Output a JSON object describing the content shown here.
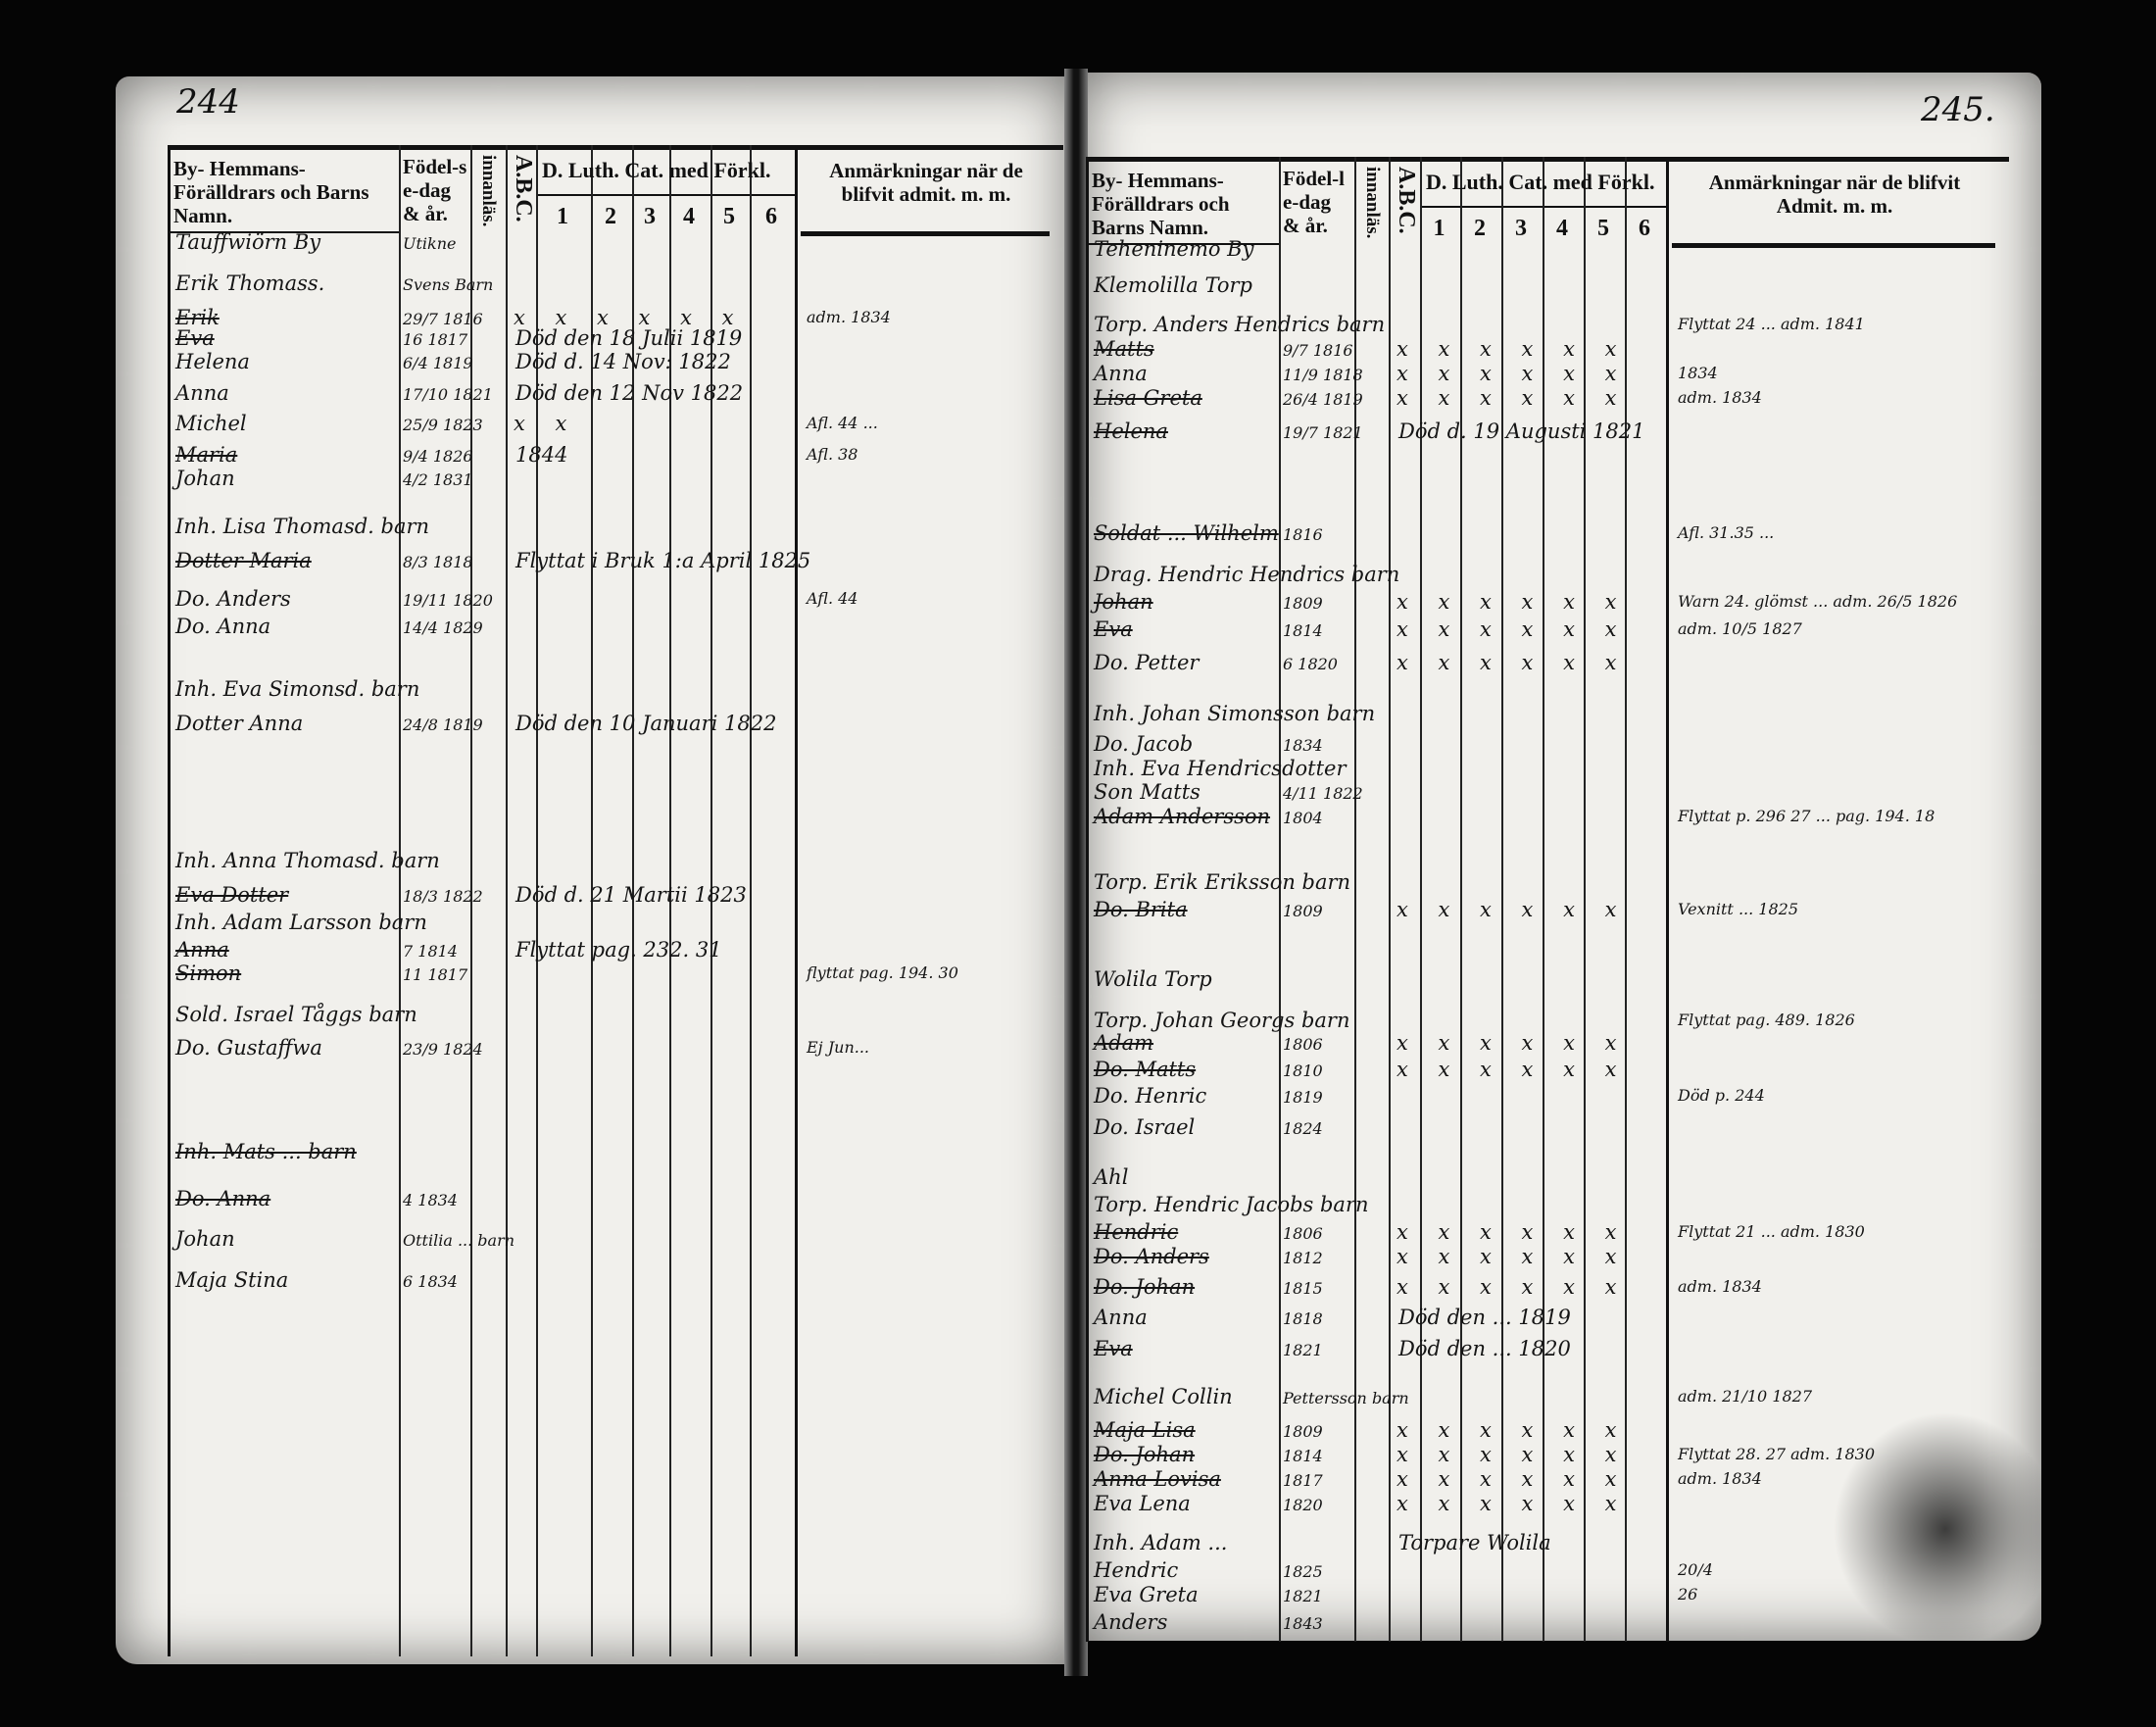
{
  "left_page": {
    "page_number": "244",
    "headers": {
      "name": "By- Hemmans- Förälldrars och Barns Namn.",
      "birth": "Födel-se-dag & år.",
      "reading": "innanläs.",
      "abc": "A.B.C.",
      "catechism": "D. Luth. Cat. med Förkl.",
      "catechism_parts": [
        "1",
        "2",
        "3",
        "4",
        "5",
        "6"
      ],
      "remarks": "Anmärkningar när de blifvit admit. m. m."
    },
    "entries": [
      {
        "name": "Tauffwiörn By",
        "birth": "Utikne"
      },
      {
        "name": "Erik Thomass.",
        "birth": "Svens Barn"
      },
      {
        "name": "Erik",
        "birth": "29/7 1816",
        "marks": "x x x x x x",
        "remark": "",
        "note": "adm. 1834",
        "struck": true
      },
      {
        "name": "Eva",
        "birth": "16 1817",
        "remark": "Död den 18 Julii 1819",
        "struck": true
      },
      {
        "name": "Helena",
        "birth": "6/4 1819",
        "remark": "Död d. 14 Nov: 1822"
      },
      {
        "name": "Anna",
        "birth": "17/10 1821",
        "remark": "Död den 12 Nov 1822"
      },
      {
        "name": "Michel",
        "birth": "25/9 1823",
        "marks": "x x",
        "note": "Afl. 44 ..."
      },
      {
        "name": "Maria",
        "birth": "9/4 1826",
        "remark": "1844",
        "note": "Afl. 38",
        "struck": true
      },
      {
        "name": "Johan",
        "birth": "4/2 1831"
      },
      {
        "name": "Inh. Lisa Thomasd. barn"
      },
      {
        "name": "Dotter Maria",
        "birth": "8/3 1818",
        "remark": "Flyttat i Bruk 1:a April 1825",
        "struck": true
      },
      {
        "name": "Do. Anders",
        "birth": "19/11 1820",
        "note": "Afl. 44"
      },
      {
        "name": "Do. Anna",
        "birth": "14/4 1829"
      },
      {
        "name": "Inh. Eva Simonsd. barn"
      },
      {
        "name": "Dotter Anna",
        "birth": "24/8 1819",
        "remark": "Död den 10 Januari 1822"
      },
      {
        "name": "Inh. Anna Thomasd. barn"
      },
      {
        "name": "Eva Dotter",
        "birth": "18/3 1822",
        "remark": "Död d. 21 Martii 1823",
        "struck": true
      },
      {
        "name": "Inh. Adam Larsson barn"
      },
      {
        "name": "Anna",
        "birth": "7 1814",
        "remark": "Flyttat pag. 232. 31",
        "struck": true
      },
      {
        "name": "Simon",
        "birth": "11 1817",
        "note": "flyttat pag. 194. 30",
        "struck": true
      },
      {
        "name": "Sold. Israel Tåggs barn"
      },
      {
        "name": "Do. Gustaffwa",
        "birth": "23/9 1824",
        "note": "Ej Jun..."
      },
      {
        "name": "Inh. Mats ... barn",
        "struck": true
      },
      {
        "name": "Do. Anna",
        "birth": "4 1834",
        "struck": true
      },
      {
        "name": "Johan",
        "birth": "Ottilia ... barn"
      },
      {
        "name": "Maja Stina",
        "birth": "6 1834"
      }
    ]
  },
  "right_page": {
    "page_number": "245.",
    "headers": {
      "name": "By- Hemmans- Förälldrars och Barns Namn.",
      "birth": "Födel-le-dag & år.",
      "reading": "innanläs.",
      "abc": "A.B.C.",
      "catechism": "D. Luth. Cat. med Förkl.",
      "catechism_parts": [
        "1",
        "2",
        "3",
        "4",
        "5",
        "6"
      ],
      "remarks": "Anmärkningar när de blifvit Admit. m. m."
    },
    "entries": [
      {
        "name": "Teheninemo By"
      },
      {
        "name": "Klemolilla Torp"
      },
      {
        "name": "Torp. Anders Hendrics barn",
        "note": "Flyttat 24 ... adm. 1841"
      },
      {
        "name": "Matts",
        "birth": "9/7 1816",
        "marks": "x x x x x x",
        "struck": true
      },
      {
        "name": "Anna",
        "birth": "11/9 1818",
        "marks": "x x x x x x",
        "note": "1834"
      },
      {
        "name": "Lisa Greta",
        "birth": "26/4 1819",
        "marks": "x x x x x x",
        "note": "adm. 1834",
        "struck": true
      },
      {
        "name": "Helena",
        "birth": "19/7 1821",
        "remark": "Död d. 19 Augusti 1821",
        "struck": true
      },
      {
        "name": "Soldat ... Wilhelm",
        "birth": "1816",
        "note": "Afl. 31.35 ...",
        "struck": true
      },
      {
        "name": "Drag. Hendric Hendrics barn"
      },
      {
        "name": "Johan",
        "birth": "1809",
        "marks": "x x x x x x",
        "note": "Warn 24. glömst ... adm. 26/5 1826",
        "struck": true
      },
      {
        "name": "Eva",
        "birth": "1814",
        "marks": "x x x x x x",
        "note": "adm. 10/5 1827",
        "struck": true
      },
      {
        "name": "Do. Petter",
        "birth": "6 1820",
        "marks": "x x x x x x"
      },
      {
        "name": "Inh. Johan Simonsson barn"
      },
      {
        "name": "Do. Jacob",
        "birth": "1834"
      },
      {
        "name": "Inh. Eva Hendricsdotter"
      },
      {
        "name": "Son Matts",
        "birth": "4/11 1822"
      },
      {
        "name": "Adam Andersson",
        "birth": "1804",
        "note": "Flyttat p. 296 27 ... pag. 194. 18",
        "struck": true
      },
      {
        "name": "Torp. Erik Eriksson barn"
      },
      {
        "name": "Do. Brita",
        "birth": "1809",
        "marks": "x x x x x x",
        "note": "Vexnitt ... 1825",
        "struck": true
      },
      {
        "name": "Wolila Torp"
      },
      {
        "name": "Torp. Johan Georgs barn",
        "note": "Flyttat pag. 489. 1826"
      },
      {
        "name": "Adam",
        "birth": "1806",
        "marks": "x x x x x x",
        "struck": true
      },
      {
        "name": "Do. Matts",
        "birth": "1810",
        "marks": "x x x x x x",
        "struck": true
      },
      {
        "name": "Do. Henric",
        "birth": "1819",
        "note": "Död p. 244"
      },
      {
        "name": "Do. Israel",
        "birth": "1824"
      },
      {
        "name": "Ahl"
      },
      {
        "name": "Torp. Hendric Jacobs barn"
      },
      {
        "name": "Hendric",
        "birth": "1806",
        "marks": "x x x x x x",
        "note": "Flyttat 21 ... adm. 1830",
        "struck": true
      },
      {
        "name": "Do. Anders",
        "birth": "1812",
        "marks": "x x x x x x",
        "struck": true
      },
      {
        "name": "Do. Johan",
        "birth": "1815",
        "marks": "x x x x x x",
        "note": "adm. 1834",
        "struck": true
      },
      {
        "name": "Anna",
        "birth": "1818",
        "remark": "Död den ... 1819"
      },
      {
        "name": "Eva",
        "birth": "1821",
        "remark": "Död den ... 1820",
        "struck": true
      },
      {
        "name": "Michel Collin",
        "birth": "Pettersson barn",
        "note": "adm. 21/10 1827"
      },
      {
        "name": "Maja Lisa",
        "birth": "1809",
        "marks": "x x x x x x",
        "struck": true
      },
      {
        "name": "Do. Johan",
        "birth": "1814",
        "marks": "x x x x x x",
        "note": "Flyttat 28. 27 adm. 1830",
        "struck": true
      },
      {
        "name": "Anna Lovisa",
        "birth": "1817",
        "marks": "x x x x x x",
        "note": "adm. 1834",
        "struck": true
      },
      {
        "name": "Eva Lena",
        "birth": "1820",
        "marks": "x x x x x x"
      },
      {
        "name": "Inh. Adam ...",
        "remark": "Torpare Wolila"
      },
      {
        "name": "Hendric",
        "birth": "1825",
        "note": "20/4"
      },
      {
        "name": "Eva Greta",
        "birth": "1821",
        "note": "26"
      },
      {
        "name": "Anders",
        "birth": "1843"
      }
    ]
  }
}
